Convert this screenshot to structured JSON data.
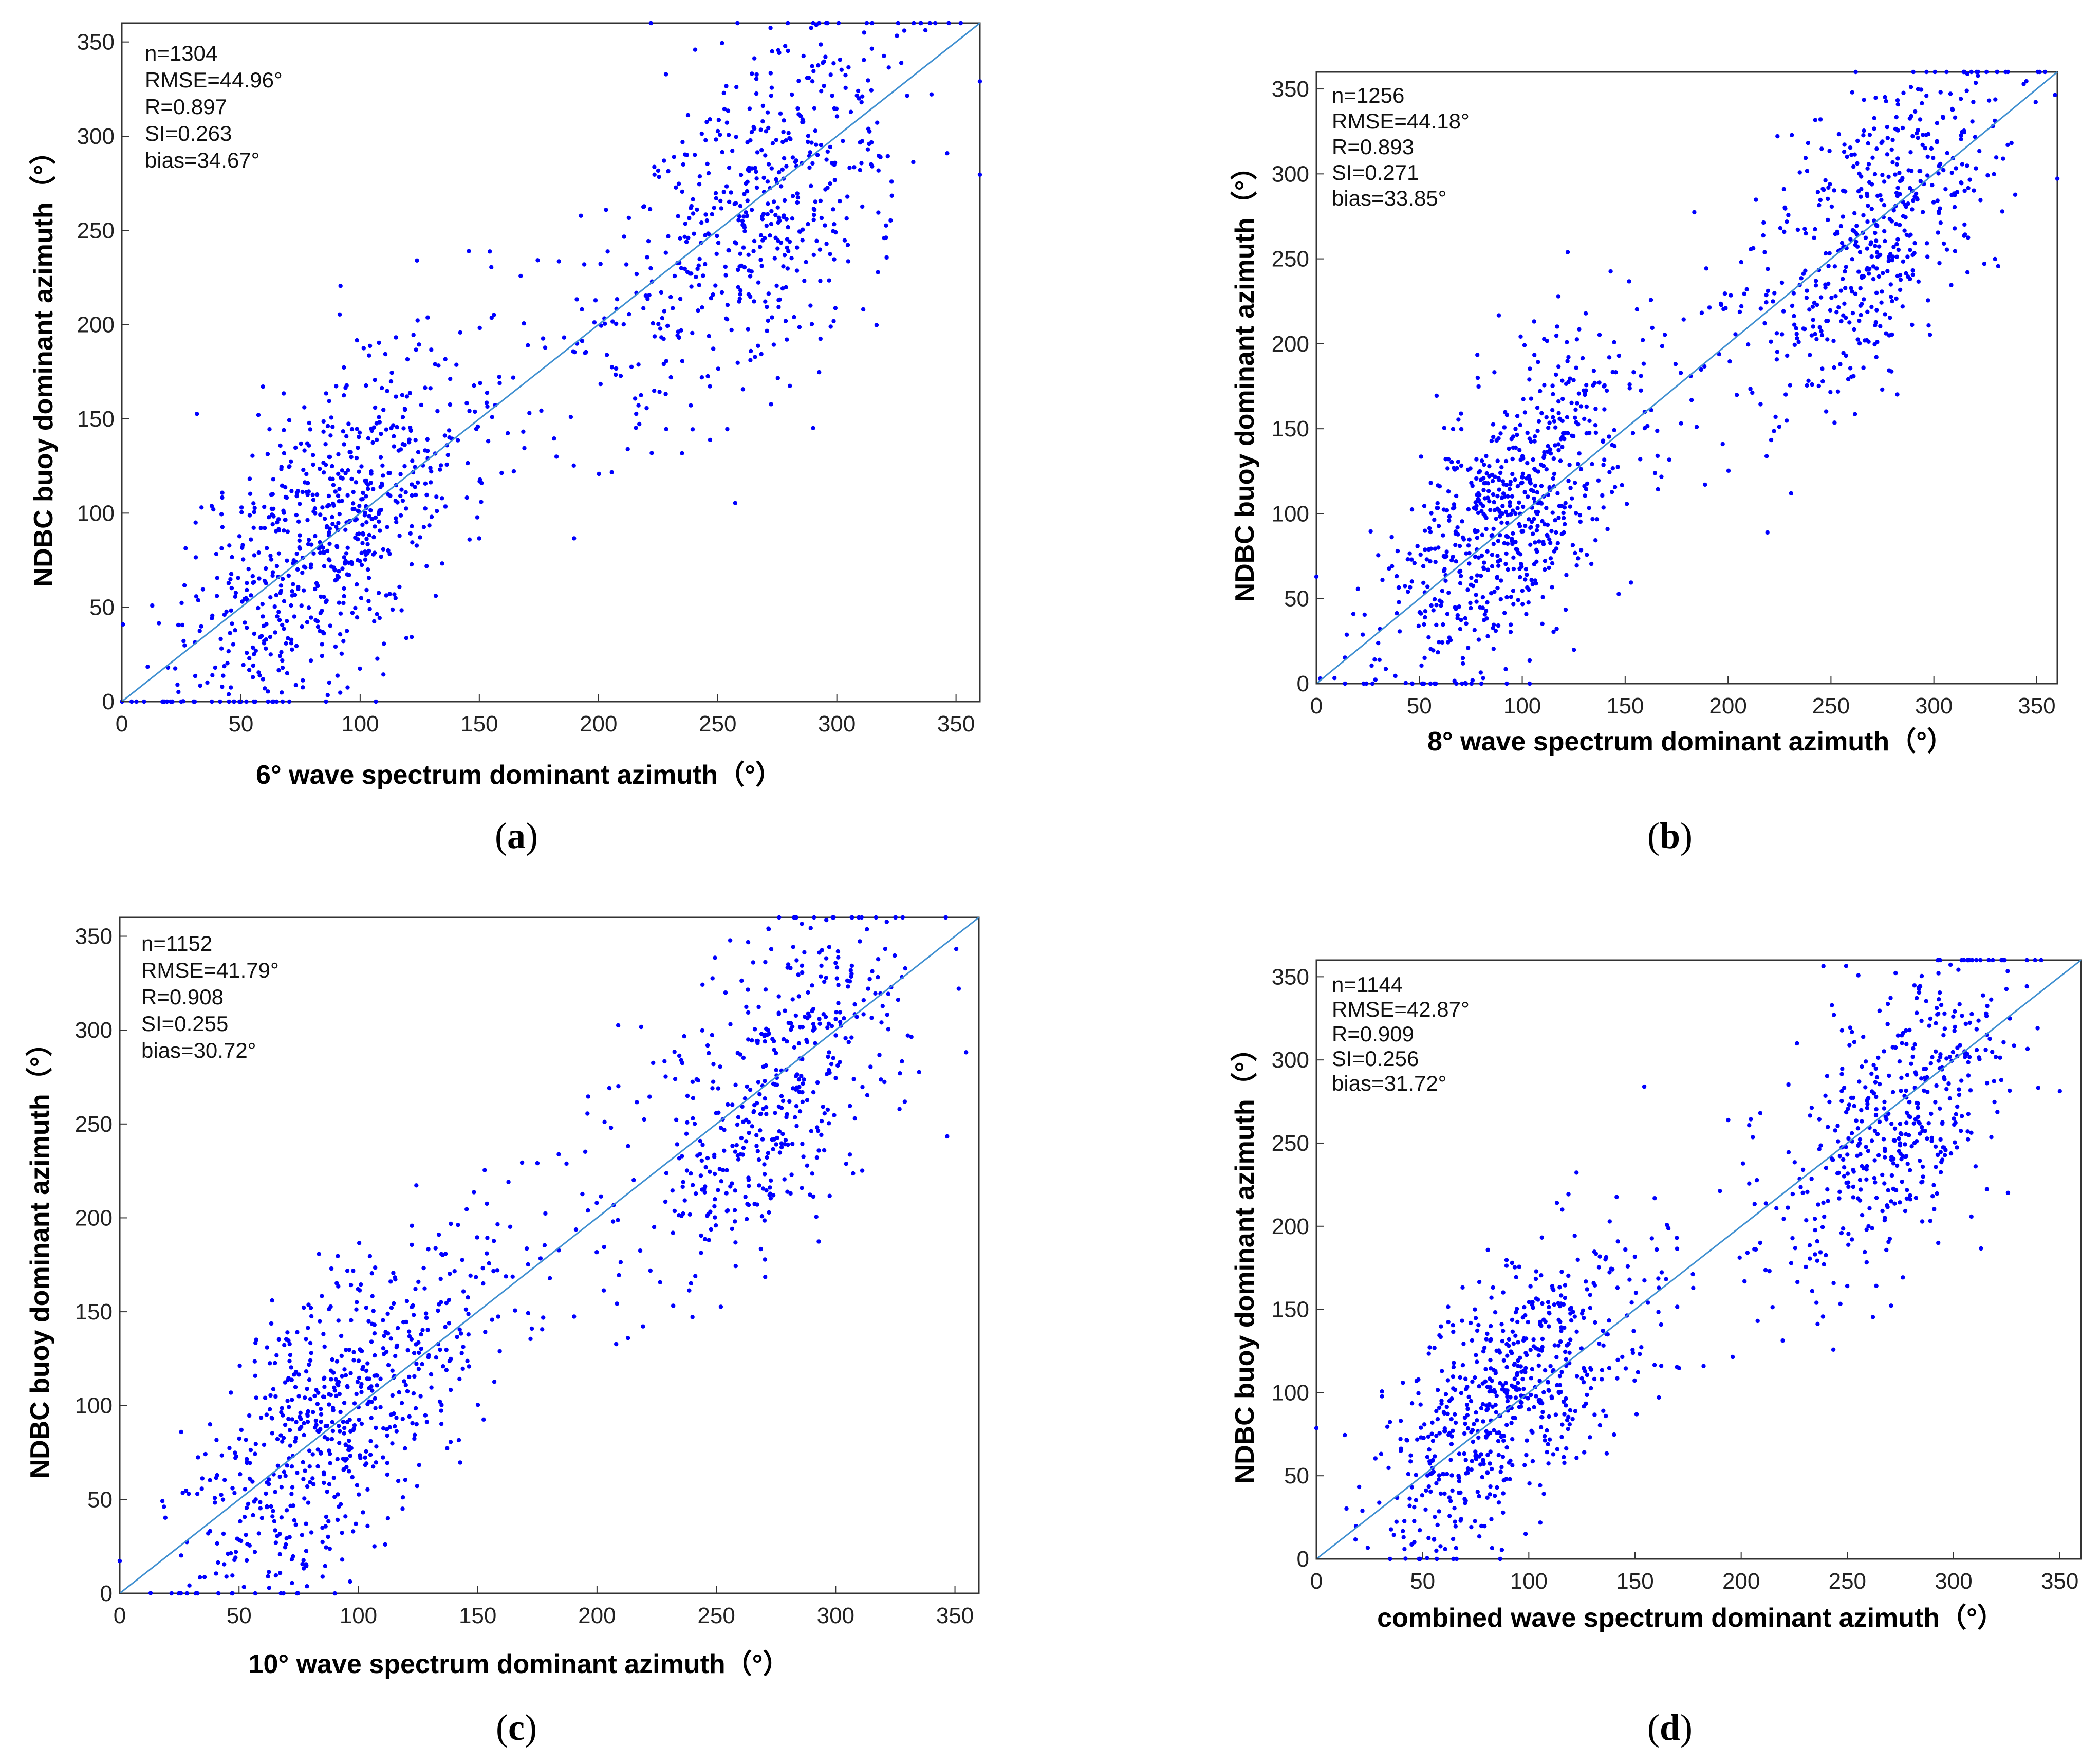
{
  "figure": {
    "marker_color": "#0000ff",
    "fit_line_color": "#3f8fd0",
    "panels": [
      {
        "id": "a",
        "caption_letter": "a",
        "xlabel": "6° wave spectrum dominant azimuth（°）",
        "ylabel": "NDBC buoy dominant azimuth（°）",
        "stats": [
          "n=1304",
          "RMSE=44.96°",
          "R=0.897",
          "SI=0.263",
          "bias=34.67°"
        ],
        "n": 1304,
        "bias": 34.67,
        "seed": 11
      },
      {
        "id": "b",
        "caption_letter": "b",
        "xlabel": "8° wave spectrum dominant azimuth（°）",
        "ylabel": "NDBC buoy dominant azimuth（°）",
        "stats": [
          "n=1256",
          "RMSE=44.18°",
          "R=0.893",
          "SI=0.271",
          "bias=33.85°"
        ],
        "n": 1256,
        "bias": 33.85,
        "seed": 23
      },
      {
        "id": "c",
        "caption_letter": "c",
        "xlabel": "10° wave spectrum dominant azimuth（°）",
        "ylabel": "NDBC buoy dominant azimuth（°）",
        "stats": [
          "n=1152",
          "RMSE=41.79°",
          "R=0.908",
          "SI=0.255",
          "bias=30.72°"
        ],
        "n": 1152,
        "bias": 30.72,
        "seed": 37
      },
      {
        "id": "d",
        "caption_letter": "d",
        "xlabel": "combined wave spectrum dominant azimuth（°）",
        "ylabel": "NDBC buoy dominant azimuth（°）",
        "stats": [
          "n=1144",
          "RMSE=42.87°",
          "R=0.909",
          "SI=0.256",
          "bias=31.72°"
        ],
        "n": 1144,
        "bias": 31.72,
        "seed": 51
      }
    ]
  },
  "chart_data": [
    {
      "type": "scatter",
      "title": "(a)",
      "xlabel": "6° wave spectrum dominant azimuth（°）",
      "ylabel": "NDBC buoy dominant azimuth（°）",
      "xlim": [
        0,
        360
      ],
      "ylim": [
        0,
        360
      ],
      "xticks": [
        0,
        50,
        100,
        150,
        200,
        250,
        300,
        350
      ],
      "yticks": [
        0,
        50,
        100,
        150,
        200,
        250,
        300,
        350
      ],
      "reference_line": {
        "x": [
          0,
          360
        ],
        "y": [
          0,
          360
        ]
      },
      "clusters": [
        {
          "x_center": 85,
          "y_center": 95,
          "x_spread": 30,
          "y_spread": 40,
          "share": 0.55
        },
        {
          "x_center": 270,
          "y_center": 265,
          "x_spread": 30,
          "y_spread": 45,
          "share": 0.4
        }
      ]
    },
    {
      "type": "scatter",
      "title": "(b)",
      "xlabel": "8° wave spectrum dominant azimuth（°）",
      "ylabel": "NDBC buoy dominant azimuth（°）",
      "xlim": [
        0,
        360
      ],
      "ylim": [
        0,
        360
      ],
      "xticks": [
        0,
        50,
        100,
        150,
        200,
        250,
        300,
        350
      ],
      "yticks": [
        0,
        50,
        100,
        150,
        200,
        250,
        300,
        350
      ],
      "reference_line": {
        "x": [
          0,
          360
        ],
        "y": [
          0,
          360
        ]
      },
      "clusters": [
        {
          "x_center": 90,
          "y_center": 95,
          "x_spread": 30,
          "y_spread": 40,
          "share": 0.55
        },
        {
          "x_center": 275,
          "y_center": 270,
          "x_spread": 30,
          "y_spread": 45,
          "share": 0.4
        }
      ]
    },
    {
      "type": "scatter",
      "title": "(c)",
      "xlabel": "10° wave spectrum dominant azimuth（°）",
      "ylabel": "NDBC buoy dominant azimuth（°）",
      "xlim": [
        0,
        360
      ],
      "ylim": [
        0,
        360
      ],
      "xticks": [
        0,
        50,
        100,
        150,
        200,
        250,
        300,
        350
      ],
      "yticks": [
        0,
        50,
        100,
        150,
        200,
        250,
        300,
        350
      ],
      "reference_line": {
        "x": [
          0,
          360
        ],
        "y": [
          0,
          360
        ]
      },
      "clusters": [
        {
          "x_center": 90,
          "y_center": 90,
          "x_spread": 30,
          "y_spread": 38,
          "share": 0.55
        },
        {
          "x_center": 275,
          "y_center": 270,
          "x_spread": 28,
          "y_spread": 42,
          "share": 0.4
        }
      ]
    },
    {
      "type": "scatter",
      "title": "(d)",
      "xlabel": "combined wave spectrum dominant azimuth（°）",
      "ylabel": "NDBC buoy dominant azimuth（°）",
      "xlim": [
        0,
        360
      ],
      "ylim": [
        0,
        360
      ],
      "xticks": [
        0,
        50,
        100,
        150,
        200,
        250,
        300,
        350
      ],
      "yticks": [
        0,
        50,
        100,
        150,
        200,
        250,
        300,
        350
      ],
      "reference_line": {
        "x": [
          0,
          360
        ],
        "y": [
          0,
          360
        ]
      },
      "clusters": [
        {
          "x_center": 90,
          "y_center": 90,
          "x_spread": 30,
          "y_spread": 38,
          "share": 0.55
        },
        {
          "x_center": 275,
          "y_center": 270,
          "x_spread": 28,
          "y_spread": 42,
          "share": 0.4
        }
      ]
    }
  ]
}
